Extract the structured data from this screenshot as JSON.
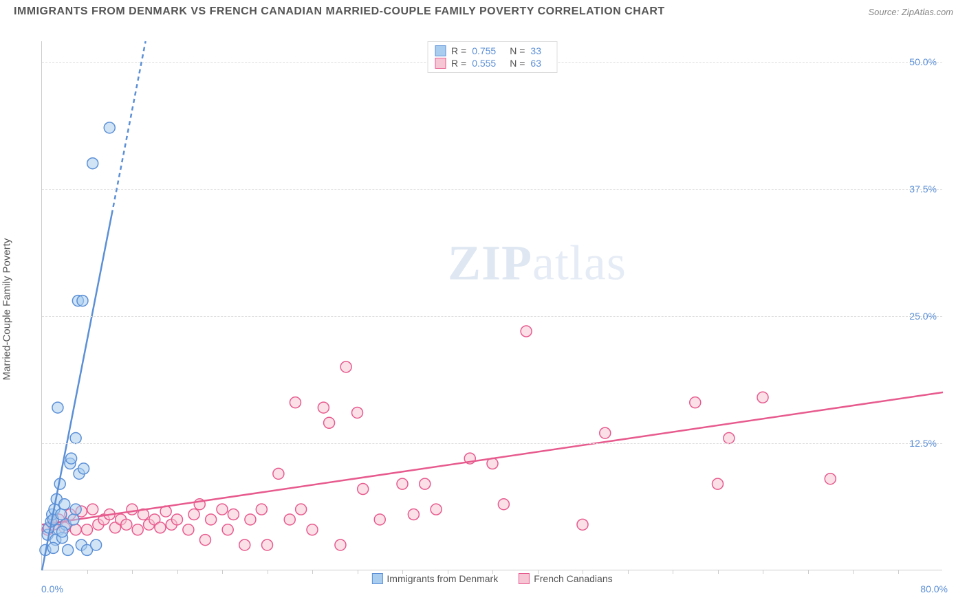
{
  "title": "IMMIGRANTS FROM DENMARK VS FRENCH CANADIAN MARRIED-COUPLE FAMILY POVERTY CORRELATION CHART",
  "source": "Source: ZipAtlas.com",
  "y_label": "Married-Couple Family Poverty",
  "watermark_a": "ZIP",
  "watermark_b": "atlas",
  "chart": {
    "type": "scatter",
    "background_color": "#ffffff",
    "grid_color": "#dddddd",
    "axis_color": "#cccccc",
    "tick_label_color": "#5b8fd6",
    "xlim": [
      0,
      80
    ],
    "ylim": [
      0,
      52
    ],
    "y_ticks": [
      {
        "v": 12.5,
        "label": "12.5%"
      },
      {
        "v": 25.0,
        "label": "25.0%"
      },
      {
        "v": 37.5,
        "label": "37.5%"
      },
      {
        "v": 50.0,
        "label": "50.0%"
      }
    ],
    "x_tick0": "0.0%",
    "x_tick_max": "80.0%",
    "x_minor_step": 4,
    "marker_radius": 8,
    "marker_stroke_width": 1.5,
    "trend_line_width": 2.5,
    "dash_pattern": "6,5"
  },
  "series": {
    "denmark": {
      "label": "Immigrants from Denmark",
      "color_fill": "#a9cdef",
      "color_stroke": "#5b8fd6",
      "R": "0.755",
      "N": "33",
      "trend": {
        "x1": 0,
        "y1": 0,
        "x2": 6.2,
        "y2": 35,
        "dash_from_y": 35,
        "x3": 9.2,
        "y3": 52
      },
      "points": [
        [
          0.3,
          2.0
        ],
        [
          0.5,
          3.5
        ],
        [
          0.6,
          4.2
        ],
        [
          0.8,
          4.8
        ],
        [
          0.9,
          5.5
        ],
        [
          1.0,
          5.0
        ],
        [
          1.1,
          6.0
        ],
        [
          1.2,
          3.0
        ],
        [
          1.3,
          7.0
        ],
        [
          1.5,
          4.0
        ],
        [
          1.6,
          8.5
        ],
        [
          1.7,
          5.5
        ],
        [
          1.8,
          3.2
        ],
        [
          2.0,
          6.5
        ],
        [
          2.1,
          4.5
        ],
        [
          2.3,
          2.0
        ],
        [
          2.5,
          10.5
        ],
        [
          2.6,
          11.0
        ],
        [
          2.8,
          5.0
        ],
        [
          3.0,
          6.0
        ],
        [
          3.3,
          9.5
        ],
        [
          3.5,
          2.5
        ],
        [
          3.7,
          10.0
        ],
        [
          4.0,
          2.0
        ],
        [
          3.0,
          13.0
        ],
        [
          1.4,
          16.0
        ],
        [
          3.2,
          26.5
        ],
        [
          3.6,
          26.5
        ],
        [
          4.5,
          40.0
        ],
        [
          4.8,
          2.5
        ],
        [
          6.0,
          43.5
        ],
        [
          1.0,
          2.2
        ],
        [
          1.8,
          3.8
        ]
      ]
    },
    "french": {
      "label": "French Canadians",
      "color_fill": "#f7c6d5",
      "color_stroke": "#e75a8d",
      "R": "0.555",
      "N": "63",
      "trend": {
        "x1": 0,
        "y1": 4.5,
        "x2": 80,
        "y2": 17.5
      },
      "points": [
        [
          0.5,
          4.0
        ],
        [
          1.0,
          4.5
        ],
        [
          1.5,
          5.0
        ],
        [
          2.0,
          4.2
        ],
        [
          2.5,
          5.5
        ],
        [
          3.0,
          4.0
        ],
        [
          3.5,
          5.8
        ],
        [
          4.0,
          4.0
        ],
        [
          4.5,
          6.0
        ],
        [
          5.0,
          4.5
        ],
        [
          5.5,
          5.0
        ],
        [
          6.0,
          5.5
        ],
        [
          6.5,
          4.2
        ],
        [
          7.0,
          5.0
        ],
        [
          7.5,
          4.5
        ],
        [
          8.0,
          6.0
        ],
        [
          8.5,
          4.0
        ],
        [
          9.0,
          5.5
        ],
        [
          9.5,
          4.5
        ],
        [
          10.0,
          5.0
        ],
        [
          10.5,
          4.2
        ],
        [
          11.0,
          5.8
        ],
        [
          11.5,
          4.5
        ],
        [
          12.0,
          5.0
        ],
        [
          13.0,
          4.0
        ],
        [
          13.5,
          5.5
        ],
        [
          14.0,
          6.5
        ],
        [
          14.5,
          3.0
        ],
        [
          15.0,
          5.0
        ],
        [
          16.0,
          6.0
        ],
        [
          16.5,
          4.0
        ],
        [
          17.0,
          5.5
        ],
        [
          18.0,
          2.5
        ],
        [
          18.5,
          5.0
        ],
        [
          19.5,
          6.0
        ],
        [
          20.0,
          2.5
        ],
        [
          21.0,
          9.5
        ],
        [
          22.0,
          5.0
        ],
        [
          22.5,
          16.5
        ],
        [
          23.0,
          6.0
        ],
        [
          24.0,
          4.0
        ],
        [
          25.0,
          16.0
        ],
        [
          25.5,
          14.5
        ],
        [
          26.5,
          2.5
        ],
        [
          27.0,
          20.0
        ],
        [
          28.0,
          15.5
        ],
        [
          28.5,
          8.0
        ],
        [
          30.0,
          5.0
        ],
        [
          32.0,
          8.5
        ],
        [
          33.0,
          5.5
        ],
        [
          34.0,
          8.5
        ],
        [
          35.0,
          6.0
        ],
        [
          38.0,
          11.0
        ],
        [
          40.0,
          10.5
        ],
        [
          41.0,
          6.5
        ],
        [
          43.0,
          23.5
        ],
        [
          48.0,
          4.5
        ],
        [
          50.0,
          13.5
        ],
        [
          58.0,
          16.5
        ],
        [
          60.0,
          8.5
        ],
        [
          61.0,
          13.0
        ],
        [
          64.0,
          17.0
        ],
        [
          70.0,
          9.0
        ]
      ]
    }
  },
  "legend_top": {
    "r_label": "R =",
    "n_label": "N ="
  }
}
